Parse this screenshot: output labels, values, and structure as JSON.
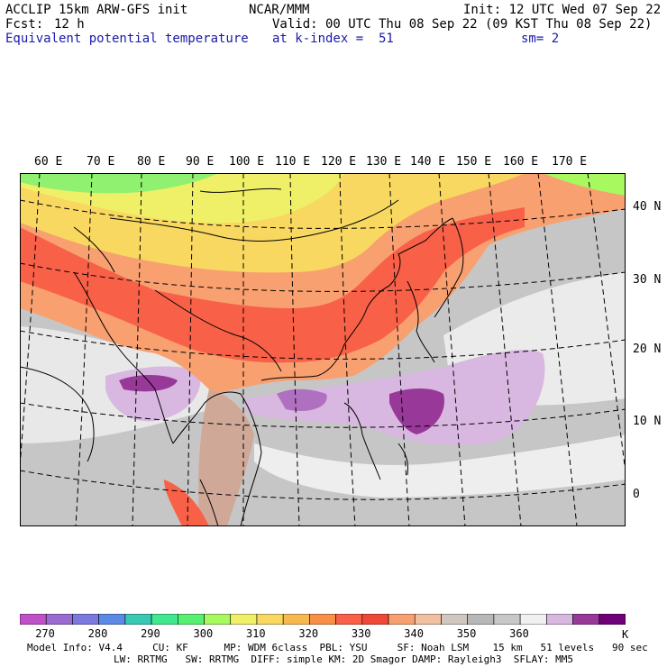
{
  "header": {
    "line1_left": "ACCLIP 15km ARW-GFS init",
    "line1_center": "NCAR/MMM",
    "line1_right": "Init: 12 UTC Wed 07 Sep 22",
    "fcst_label": "Fcst:",
    "fcst_value": "12 h",
    "valid": "Valid: 00 UTC Thu 08 Sep 22 (09 KST Thu 08 Sep 22)",
    "field_name": "Equivalent potential temperature",
    "k_index": "at k-index =  51",
    "smoothing": "sm= 2"
  },
  "map": {
    "lon_labels": [
      "60 E",
      "70 E",
      "80 E",
      "90 E",
      "100 E",
      "110 E",
      "120 E",
      "130 E",
      "140 E",
      "150 E",
      "160 E",
      "170 E"
    ],
    "lat_labels": [
      "40 N",
      "30 N",
      "20 N",
      "10 N",
      "0"
    ]
  },
  "colorbar": {
    "labels": [
      "270",
      "280",
      "290",
      "300",
      "310",
      "320",
      "330",
      "340",
      "350",
      "360"
    ],
    "unit": "K",
    "colors": [
      "#c050c8",
      "#9a6ad2",
      "#7b78e0",
      "#5a8ae6",
      "#38c8b4",
      "#40e890",
      "#58f070",
      "#a8f860",
      "#f0f068",
      "#f8d860",
      "#f8b850",
      "#f89048",
      "#f86048",
      "#f04838",
      "#f8a070",
      "#f0c0a0",
      "#d0c8c0",
      "#b8b8b8",
      "#c8c8c8",
      "#f0f0f0",
      "#d8b8e0",
      "#983898",
      "#700078"
    ]
  },
  "footer": {
    "line1": "Model Info: V4.4     CU: KF      MP: WDM 6class  PBL: YSU     SF: Noah LSM    15 km   51 levels   90 sec",
    "line2": "LW: RRTMG   SW: RRTMG  DIFF: simple KM: 2D Smagor DAMP: Rayleigh3  SFLAY: MM5"
  }
}
